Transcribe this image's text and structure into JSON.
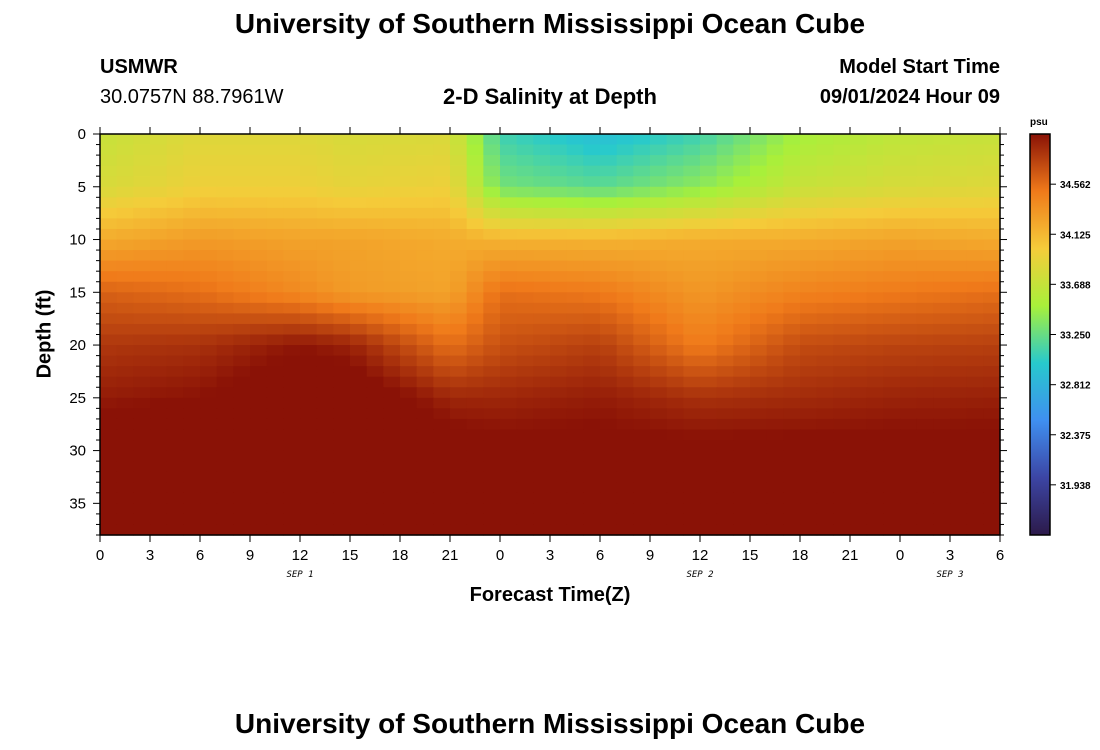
{
  "header": {
    "title_top": "University of Southern Mississippi Ocean Cube",
    "title_bottom": "University of Southern Mississippi Ocean Cube",
    "station_id": "USMWR",
    "coords": "30.0757N  88.7961W",
    "center_title": "2-D Salinity at Depth",
    "model_label": "Model Start Time",
    "model_time": "09/01/2024 Hour 09"
  },
  "colors": {
    "scale": [
      "#2c1a4a",
      "#3c45a4",
      "#3f8ff0",
      "#27c9cd",
      "#a8f03a",
      "#f5cc3a",
      "#f07a1a",
      "#8a1206"
    ]
  },
  "chart_data": {
    "type": "heatmap",
    "title": "2-D Salinity at Depth",
    "xlabel": "Forecast Time(Z)",
    "ylabel": "Depth (ft)",
    "x_ticks": [
      "0",
      "3",
      "6",
      "9",
      "12",
      "15",
      "18",
      "21",
      "0",
      "3",
      "6",
      "9",
      "12",
      "15",
      "18",
      "21",
      "0",
      "3",
      "6"
    ],
    "date_labels": [
      {
        "label": "SEP 1",
        "tick_index": 4
      },
      {
        "label": "SEP 2",
        "tick_index": 12
      },
      {
        "label": "SEP 3",
        "tick_index": 17
      }
    ],
    "y_ticks": [
      0,
      5,
      10,
      15,
      20,
      25,
      30,
      35
    ],
    "ylim": [
      0,
      38
    ],
    "x_hours": [
      0,
      54
    ],
    "colorbar": {
      "unit": "psu",
      "ticks": [
        "34.562",
        "34.125",
        "33.688",
        "33.250",
        "32.812",
        "32.375",
        "31.938"
      ],
      "range": [
        31.5,
        35.0
      ]
    },
    "depth_profile_ft": [
      0,
      5,
      10,
      15,
      20,
      25,
      30,
      35,
      38
    ],
    "profile_hours": [
      0,
      6,
      12,
      15,
      21,
      24,
      30,
      36,
      42,
      48,
      54
    ],
    "salinity_psu": [
      [
        33.7,
        33.85,
        33.85,
        33.8,
        33.82,
        33.1,
        32.9,
        33.1,
        33.5,
        33.65,
        33.7
      ],
      [
        33.8,
        33.95,
        33.95,
        33.9,
        33.95,
        33.3,
        33.2,
        33.4,
        33.7,
        33.8,
        33.85
      ],
      [
        34.2,
        34.3,
        34.25,
        34.25,
        34.2,
        34.15,
        34.15,
        34.2,
        34.2,
        34.25,
        34.2
      ],
      [
        34.62,
        34.55,
        34.4,
        34.3,
        34.25,
        34.55,
        34.5,
        34.32,
        34.45,
        34.5,
        34.55
      ],
      [
        34.82,
        34.85,
        34.98,
        34.92,
        34.55,
        34.7,
        34.78,
        34.48,
        34.72,
        34.76,
        34.78
      ],
      [
        34.95,
        35.0,
        35.15,
        35.15,
        34.9,
        34.9,
        34.95,
        34.85,
        34.88,
        34.92,
        34.93
      ],
      [
        35.18,
        35.2,
        35.3,
        35.32,
        35.1,
        35.05,
        35.05,
        35.05,
        35.05,
        35.05,
        35.05
      ],
      [
        35.32,
        35.28,
        35.42,
        35.48,
        35.2,
        35.2,
        35.18,
        35.18,
        35.18,
        35.18,
        35.2
      ],
      [
        35.45,
        35.35,
        35.5,
        35.56,
        35.28,
        35.28,
        35.26,
        35.25,
        35.25,
        35.25,
        35.28
      ]
    ]
  }
}
